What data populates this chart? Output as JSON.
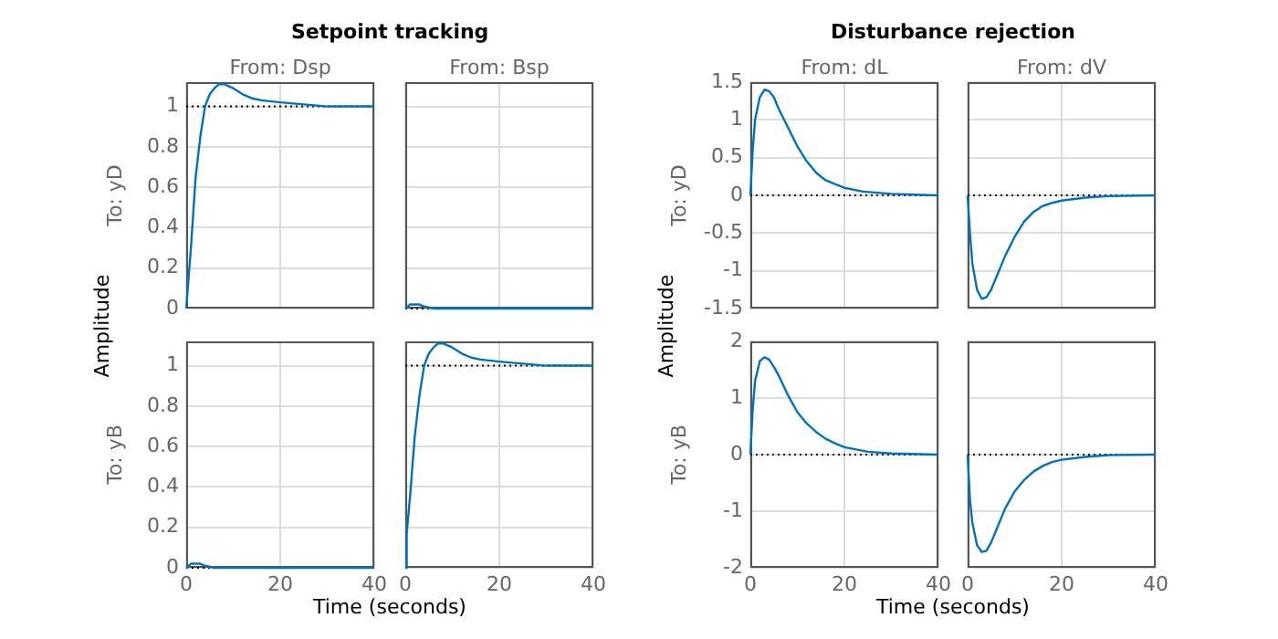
{
  "chart_data": [
    {
      "type": "line",
      "title": "From: Dsp",
      "ylabel": "To: yD",
      "annotations": [
        "Setpoint tracking",
        "Amplitude",
        "Time (seconds)"
      ],
      "x": [
        0,
        0.5,
        1,
        2,
        3,
        4,
        5,
        6,
        7,
        8,
        10,
        12,
        14,
        16,
        20,
        25,
        30,
        40
      ],
      "series": [
        {
          "color": "#0072bd",
          "values": [
            0,
            0.15,
            0.3,
            0.65,
            0.85,
            1.0,
            1.06,
            1.09,
            1.11,
            1.11,
            1.09,
            1.06,
            1.04,
            1.03,
            1.02,
            1.01,
            1.0,
            1.0
          ]
        }
      ],
      "xlim": [
        0,
        40
      ],
      "xticks": [
        0,
        20,
        40
      ],
      "ylim": [
        0,
        1.12
      ],
      "yticks": [
        0,
        0.2,
        0.4,
        0.6,
        0.8,
        1
      ],
      "grid": true,
      "tick_labels": "y",
      "ref_lines": [
        {
          "axis": "y",
          "value": 1,
          "color": "#000000",
          "line_style": "dotted"
        }
      ]
    },
    {
      "type": "line",
      "title": "From: Bsp",
      "x": [
        0,
        1,
        2,
        3,
        4,
        6,
        10,
        20,
        25,
        40
      ],
      "series": [
        {
          "color": "#0072bd",
          "values": [
            0,
            0.02,
            0.02,
            0.02,
            0.01,
            0,
            0,
            0,
            0,
            0
          ]
        }
      ],
      "xlim": [
        0,
        40
      ],
      "xticks": [
        0,
        20,
        40
      ],
      "ylim": [
        0,
        1.12
      ],
      "yticks": [
        0,
        0.2,
        0.4,
        0.6,
        0.8,
        1
      ],
      "grid": true,
      "tick_labels": false,
      "ref_lines": [
        {
          "axis": "y",
          "value": 0,
          "color": "#000000",
          "line_style": "dotted"
        }
      ]
    },
    {
      "type": "line",
      "title": "From: dL",
      "ylabel": "To: yD",
      "annotations": [
        "Disturbance rejection",
        "Amplitude",
        "Time (seconds)"
      ],
      "x": [
        0,
        0.5,
        1,
        2,
        3,
        4,
        5,
        6,
        8,
        10,
        12,
        14,
        16,
        18,
        20,
        24,
        30,
        40
      ],
      "series": [
        {
          "color": "#0072bd",
          "values": [
            0,
            0.6,
            1.0,
            1.3,
            1.4,
            1.38,
            1.3,
            1.15,
            0.9,
            0.65,
            0.45,
            0.3,
            0.2,
            0.15,
            0.1,
            0.05,
            0.02,
            0
          ]
        }
      ],
      "xlim": [
        0,
        40
      ],
      "xticks": [
        0,
        20,
        40
      ],
      "ylim": [
        -1.5,
        1.5
      ],
      "yticks": [
        -1.5,
        -1,
        -0.5,
        0,
        0.5,
        1,
        1.5
      ],
      "grid": true,
      "tick_labels": "y",
      "ref_lines": [
        {
          "axis": "y",
          "value": 0,
          "color": "#000000",
          "line_style": "dotted"
        }
      ]
    },
    {
      "type": "line",
      "title": "From: dV",
      "x": [
        0,
        0.5,
        1,
        2,
        3,
        4,
        5,
        6,
        8,
        10,
        12,
        14,
        16,
        18,
        20,
        25,
        30,
        40
      ],
      "series": [
        {
          "color": "#0072bd",
          "values": [
            0,
            -0.5,
            -0.9,
            -1.25,
            -1.37,
            -1.35,
            -1.25,
            -1.1,
            -0.8,
            -0.55,
            -0.35,
            -0.22,
            -0.14,
            -0.1,
            -0.07,
            -0.03,
            -0.01,
            0
          ]
        }
      ],
      "xlim": [
        0,
        40
      ],
      "xticks": [
        0,
        20,
        40
      ],
      "ylim": [
        -1.5,
        1.5
      ],
      "yticks": [
        -1.5,
        -1,
        -0.5,
        0,
        0.5,
        1,
        1.5
      ],
      "grid": true,
      "tick_labels": false,
      "ref_lines": [
        {
          "axis": "y",
          "value": 0,
          "color": "#000000",
          "line_style": "dotted"
        }
      ]
    },
    {
      "type": "line",
      "ylabel": "To: yB",
      "x": [
        0,
        1,
        2,
        3,
        4,
        6,
        10,
        19,
        20,
        40
      ],
      "series": [
        {
          "color": "#0072bd",
          "values": [
            0,
            0.02,
            0.02,
            0.02,
            0.01,
            0,
            0,
            0,
            0,
            0
          ]
        }
      ],
      "xlim": [
        0,
        40
      ],
      "xticks": [
        0,
        20,
        40
      ],
      "ylim": [
        0,
        1.12
      ],
      "yticks": [
        0,
        0.2,
        0.4,
        0.6,
        0.8,
        1
      ],
      "grid": true,
      "ref_lines": [
        {
          "axis": "y",
          "value": 0,
          "color": "#000000",
          "line_style": "dotted"
        }
      ]
    },
    {
      "type": "line",
      "x": [
        0,
        0.3,
        1,
        2,
        3,
        4,
        5,
        6,
        7,
        8,
        10,
        12,
        14,
        16,
        20,
        25,
        30,
        40
      ],
      "series": [
        {
          "color": "#0072bd",
          "values": [
            0,
            0.17,
            0.35,
            0.65,
            0.85,
            1.0,
            1.06,
            1.09,
            1.11,
            1.11,
            1.09,
            1.06,
            1.04,
            1.03,
            1.02,
            1.01,
            1.0,
            1.0
          ]
        }
      ],
      "xlim": [
        0,
        40
      ],
      "xticks": [
        0,
        20,
        40
      ],
      "ylim": [
        0,
        1.12
      ],
      "yticks": [
        0,
        0.2,
        0.4,
        0.6,
        0.8,
        1
      ],
      "grid": true,
      "tick_labels": "x",
      "ref_lines": [
        {
          "axis": "y",
          "value": 1,
          "color": "#000000",
          "line_style": "dotted"
        }
      ]
    },
    {
      "type": "line",
      "ylabel": "To: yB",
      "x": [
        0,
        0.5,
        1,
        2,
        3,
        4,
        5,
        6,
        8,
        10,
        12,
        14,
        16,
        18,
        20,
        25,
        30,
        40
      ],
      "series": [
        {
          "color": "#0072bd",
          "values": [
            0,
            0.8,
            1.3,
            1.65,
            1.72,
            1.68,
            1.55,
            1.4,
            1.05,
            0.75,
            0.55,
            0.4,
            0.28,
            0.2,
            0.13,
            0.05,
            0.02,
            0
          ]
        }
      ],
      "xlim": [
        0,
        40
      ],
      "xticks": [
        0,
        20,
        40
      ],
      "ylim": [
        -2,
        2
      ],
      "yticks": [
        -2,
        -1,
        0,
        1,
        2
      ],
      "grid": true,
      "ref_lines": [
        {
          "axis": "y",
          "value": 0,
          "color": "#000000",
          "line_style": "dotted"
        }
      ]
    },
    {
      "type": "line",
      "x": [
        0,
        0.5,
        1,
        2,
        3,
        4,
        5,
        6,
        8,
        10,
        12,
        14,
        16,
        18,
        20,
        25,
        30,
        40
      ],
      "series": [
        {
          "color": "#0072bd",
          "values": [
            0,
            -0.8,
            -1.2,
            -1.6,
            -1.72,
            -1.7,
            -1.55,
            -1.35,
            -0.95,
            -0.65,
            -0.45,
            -0.3,
            -0.2,
            -0.13,
            -0.09,
            -0.04,
            -0.01,
            0
          ]
        }
      ],
      "xlim": [
        0,
        40
      ],
      "xticks": [
        0,
        20,
        40
      ],
      "ylim": [
        -2,
        2
      ],
      "yticks": [
        -2,
        -1,
        0,
        1,
        2
      ],
      "grid": true,
      "tick_labels": "x",
      "ref_lines": [
        {
          "axis": "y",
          "value": 0,
          "color": "#000000",
          "line_style": "dotted"
        }
      ]
    }
  ]
}
